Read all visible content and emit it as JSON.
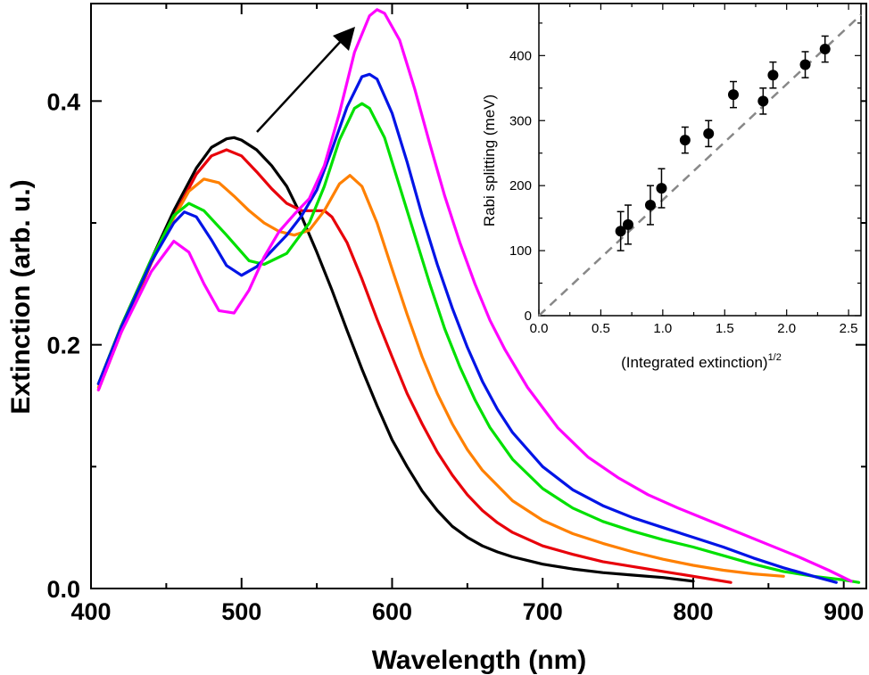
{
  "chart_data": [
    {
      "type": "line",
      "title": "",
      "xlabel": "Wavelength (nm)",
      "ylabel": "Extinction (arb. u.)",
      "xlim": [
        400,
        915
      ],
      "ylim": [
        0,
        0.48
      ],
      "xticks": [
        "400",
        "500",
        "600",
        "700",
        "800",
        "900"
      ],
      "yticks": [
        "0.0",
        "0.2",
        "0.4"
      ],
      "grid": false,
      "legend": "none",
      "annotation": "arrow pointing up-right indicating increasing coupling",
      "series": [
        {
          "color": "#000000",
          "x": [
            405,
            420,
            440,
            455,
            470,
            480,
            490,
            495,
            500,
            510,
            520,
            530,
            540,
            550,
            560,
            570,
            580,
            590,
            600,
            610,
            620,
            630,
            640,
            650,
            660,
            670,
            680,
            690,
            700,
            720,
            740,
            760,
            780,
            800
          ],
          "y": [
            0.168,
            0.215,
            0.27,
            0.31,
            0.345,
            0.362,
            0.369,
            0.37,
            0.368,
            0.36,
            0.347,
            0.33,
            0.305,
            0.276,
            0.245,
            0.212,
            0.18,
            0.15,
            0.122,
            0.1,
            0.08,
            0.064,
            0.051,
            0.042,
            0.035,
            0.03,
            0.026,
            0.023,
            0.02,
            0.016,
            0.013,
            0.011,
            0.009,
            0.006
          ]
        },
        {
          "color": "#e8000a",
          "x": [
            405,
            420,
            440,
            455,
            470,
            480,
            490,
            500,
            510,
            520,
            530,
            540,
            550,
            555,
            560,
            570,
            580,
            590,
            600,
            610,
            620,
            630,
            640,
            650,
            660,
            670,
            680,
            700,
            720,
            740,
            760,
            780,
            800,
            825
          ],
          "y": [
            0.163,
            0.21,
            0.267,
            0.305,
            0.34,
            0.355,
            0.36,
            0.355,
            0.342,
            0.328,
            0.316,
            0.31,
            0.31,
            0.31,
            0.305,
            0.284,
            0.254,
            0.221,
            0.19,
            0.16,
            0.135,
            0.112,
            0.093,
            0.077,
            0.064,
            0.054,
            0.046,
            0.035,
            0.028,
            0.022,
            0.018,
            0.014,
            0.01,
            0.005
          ]
        },
        {
          "color": "#ff8000",
          "x": [
            405,
            420,
            440,
            455,
            465,
            475,
            485,
            495,
            505,
            515,
            525,
            535,
            545,
            555,
            565,
            572,
            580,
            590,
            600,
            610,
            620,
            630,
            640,
            650,
            660,
            680,
            700,
            720,
            740,
            760,
            780,
            800,
            820,
            840,
            860
          ],
          "y": [
            0.165,
            0.212,
            0.268,
            0.304,
            0.326,
            0.336,
            0.333,
            0.322,
            0.31,
            0.3,
            0.293,
            0.29,
            0.294,
            0.31,
            0.332,
            0.339,
            0.33,
            0.3,
            0.262,
            0.225,
            0.19,
            0.16,
            0.135,
            0.114,
            0.097,
            0.072,
            0.056,
            0.045,
            0.037,
            0.03,
            0.024,
            0.019,
            0.015,
            0.012,
            0.01
          ]
        },
        {
          "color": "#00e000",
          "x": [
            405,
            420,
            440,
            455,
            465,
            475,
            490,
            505,
            515,
            530,
            545,
            555,
            565,
            575,
            580,
            585,
            595,
            605,
            615,
            625,
            635,
            645,
            655,
            665,
            680,
            700,
            720,
            740,
            760,
            780,
            800,
            820,
            840,
            860,
            880,
            900,
            910
          ],
          "y": [
            0.168,
            0.215,
            0.27,
            0.306,
            0.316,
            0.31,
            0.29,
            0.269,
            0.266,
            0.275,
            0.3,
            0.33,
            0.368,
            0.394,
            0.398,
            0.394,
            0.37,
            0.33,
            0.29,
            0.25,
            0.213,
            0.182,
            0.155,
            0.132,
            0.106,
            0.082,
            0.066,
            0.055,
            0.047,
            0.04,
            0.034,
            0.027,
            0.02,
            0.014,
            0.01,
            0.007,
            0.005
          ]
        },
        {
          "color": "#0014e6",
          "x": [
            405,
            420,
            440,
            455,
            462,
            470,
            480,
            490,
            500,
            510,
            520,
            530,
            540,
            550,
            560,
            570,
            580,
            585,
            590,
            600,
            610,
            620,
            630,
            640,
            650,
            660,
            670,
            680,
            700,
            720,
            740,
            760,
            780,
            800,
            820,
            840,
            860,
            880,
            895
          ],
          "y": [
            0.168,
            0.214,
            0.268,
            0.3,
            0.309,
            0.305,
            0.286,
            0.265,
            0.257,
            0.264,
            0.277,
            0.29,
            0.306,
            0.327,
            0.36,
            0.395,
            0.42,
            0.422,
            0.418,
            0.39,
            0.35,
            0.306,
            0.266,
            0.23,
            0.198,
            0.17,
            0.147,
            0.128,
            0.1,
            0.081,
            0.068,
            0.058,
            0.05,
            0.042,
            0.034,
            0.025,
            0.017,
            0.01,
            0.005
          ]
        },
        {
          "color": "#ff00ff",
          "x": [
            405,
            420,
            440,
            455,
            465,
            475,
            485,
            495,
            505,
            515,
            525,
            535,
            545,
            555,
            565,
            575,
            585,
            590,
            595,
            605,
            615,
            625,
            635,
            645,
            655,
            665,
            675,
            690,
            710,
            730,
            750,
            770,
            790,
            810,
            830,
            850,
            870,
            890,
            905
          ],
          "y": [
            0.163,
            0.21,
            0.26,
            0.285,
            0.276,
            0.25,
            0.228,
            0.226,
            0.245,
            0.272,
            0.293,
            0.307,
            0.32,
            0.347,
            0.39,
            0.44,
            0.47,
            0.475,
            0.472,
            0.45,
            0.41,
            0.365,
            0.322,
            0.284,
            0.25,
            0.22,
            0.196,
            0.165,
            0.132,
            0.108,
            0.091,
            0.077,
            0.066,
            0.056,
            0.046,
            0.036,
            0.026,
            0.015,
            0.006
          ]
        }
      ]
    },
    {
      "type": "scatter",
      "title": "",
      "xlabel": "(Integrated extinction)",
      "xlabel_superscript": "1/2",
      "ylabel": "Rabi splitting (meV)",
      "xlim": [
        0.0,
        2.6
      ],
      "ylim": [
        0,
        480
      ],
      "xticks": [
        "0.0",
        "0.5",
        "1.0",
        "1.5",
        "2.0",
        "2.5"
      ],
      "yticks": [
        "0",
        "100",
        "200",
        "300",
        "400"
      ],
      "grid": false,
      "legend": "none",
      "fit_line": {
        "style": "dashed",
        "color": "#888888",
        "slope": 178,
        "intercept": 0
      },
      "points": [
        {
          "x": 0.66,
          "y": 130,
          "err": 30
        },
        {
          "x": 0.72,
          "y": 140,
          "err": 30
        },
        {
          "x": 0.9,
          "y": 170,
          "err": 30
        },
        {
          "x": 0.99,
          "y": 196,
          "err": 30
        },
        {
          "x": 1.18,
          "y": 270,
          "err": 20
        },
        {
          "x": 1.37,
          "y": 280,
          "err": 20
        },
        {
          "x": 1.57,
          "y": 340,
          "err": 20
        },
        {
          "x": 1.81,
          "y": 330,
          "err": 20
        },
        {
          "x": 1.89,
          "y": 370,
          "err": 20
        },
        {
          "x": 2.15,
          "y": 386,
          "err": 20
        },
        {
          "x": 2.31,
          "y": 410,
          "err": 20
        }
      ]
    }
  ]
}
